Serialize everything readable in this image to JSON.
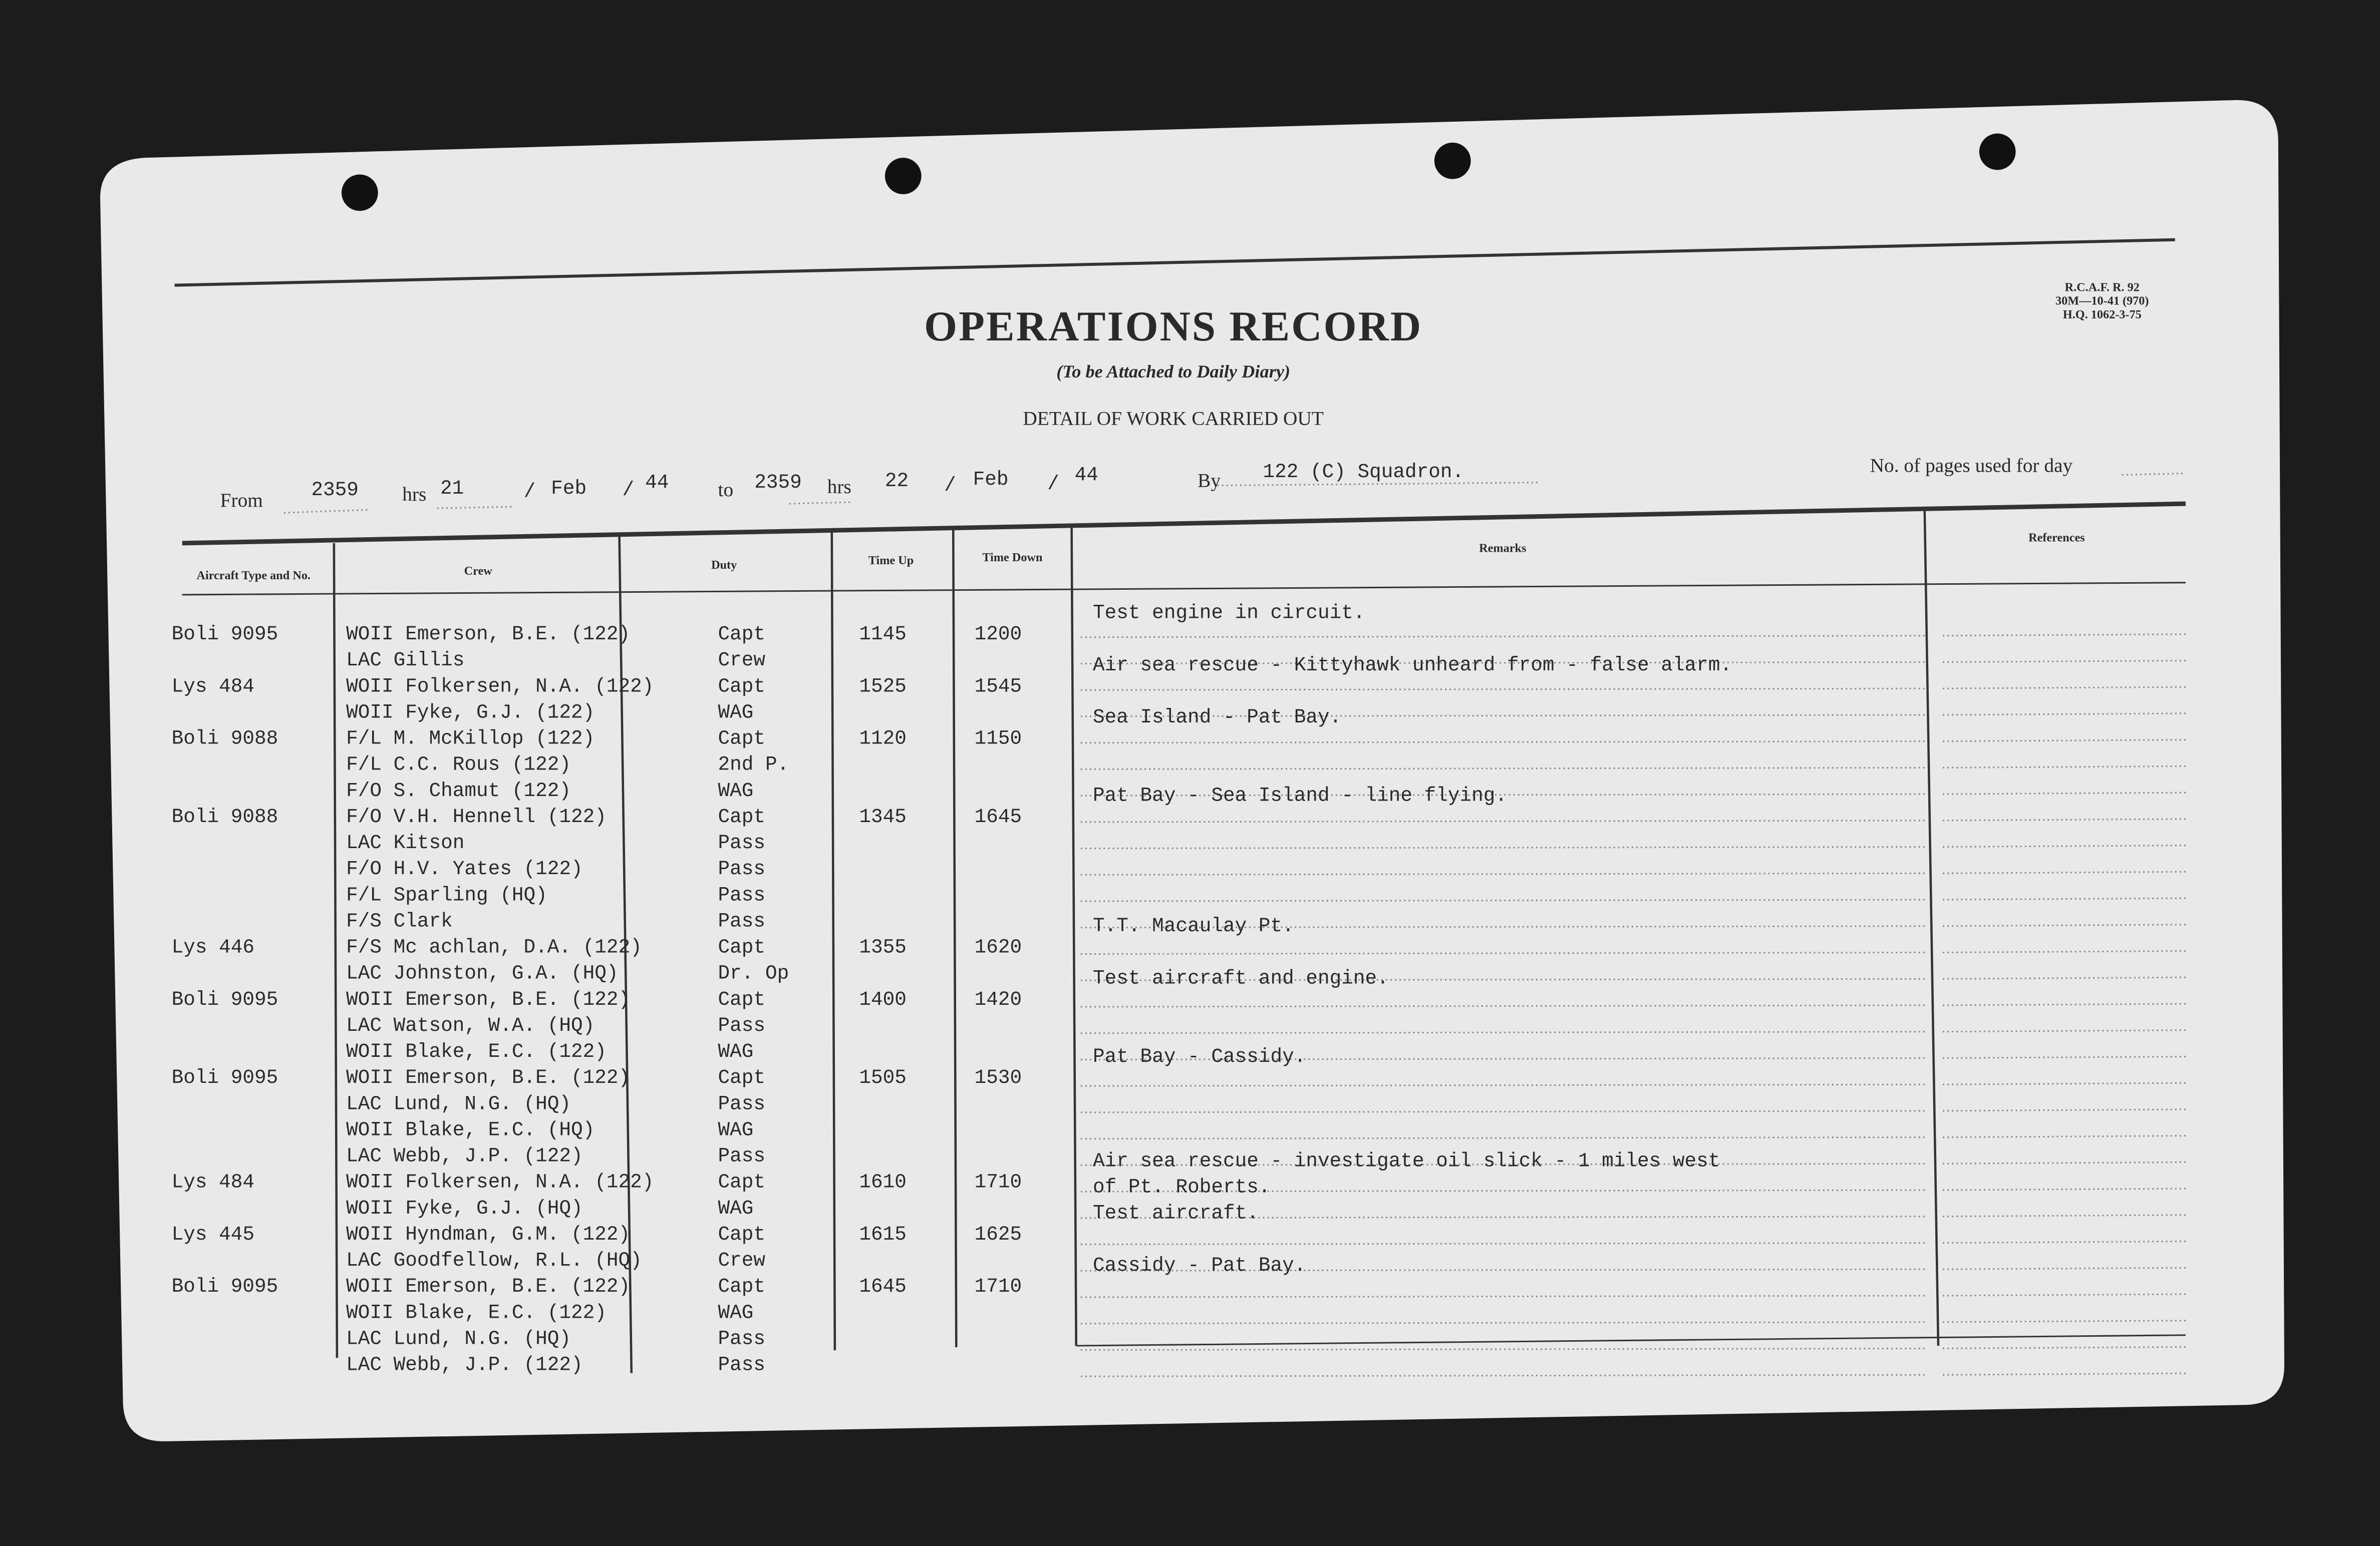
{
  "form_code": [
    "R.C.A.F. R. 92",
    "30M—10-41 (970)",
    "H.Q. 1062-3-75"
  ],
  "header": {
    "title": "OPERATIONS RECORD",
    "subtitle": "(To be Attached to Daily Diary)",
    "detail": "DETAIL OF WORK CARRIED OUT"
  },
  "period": {
    "from_label": "From",
    "from_time": "2359",
    "hrs_label": "hrs",
    "from_day": "21",
    "sep": "/",
    "from_month": "Feb",
    "from_year": "44",
    "to_label": "to",
    "to_time": "2359",
    "to_day": "22",
    "to_month": "Feb",
    "to_year": "44",
    "by_label": "By",
    "by": "122 (C) Squadron.",
    "pages_label": "No. of pages used for day"
  },
  "table": {
    "columns": [
      "Aircraft Type and No.",
      "Crew",
      "Duty",
      "Time Up",
      "Time Down",
      "Remarks",
      "References"
    ],
    "rows": [
      {
        "type": "Boli 9095",
        "crew": "WOII Emerson, B.E. (122)",
        "duty": "Capt",
        "up": "1145",
        "down": "1200",
        "remarks": "Test engine in circuit."
      },
      {
        "crew": "LAC Gillis",
        "duty": "Crew"
      },
      {
        "type": "Lys 484",
        "crew": "WOII Folkersen, N.A. (122)",
        "duty": "Capt",
        "up": "1525",
        "down": "1545",
        "remarks": "Air sea rescue - Kittyhawk unheard from - false alarm."
      },
      {
        "crew": "WOII Fyke, G.J. (122)",
        "duty": "WAG"
      },
      {
        "type": "Boli 9088",
        "crew": "F/L M. McKillop (122)",
        "duty": "Capt",
        "up": "1120",
        "down": "1150",
        "remarks": "Sea Island - Pat Bay."
      },
      {
        "crew": "F/L C.C. Rous (122)",
        "duty": "2nd P."
      },
      {
        "crew": "F/O S. Chamut (122)",
        "duty": "WAG"
      },
      {
        "type": "Boli 9088",
        "crew": "F/O V.H. Hennell (122)",
        "duty": "Capt",
        "up": "1345",
        "down": "1645",
        "remarks": "Pat Bay - Sea Island - line flying."
      },
      {
        "crew": "LAC Kitson",
        "duty": "Pass"
      },
      {
        "crew": "F/O H.V. Yates (122)",
        "duty": "Pass"
      },
      {
        "crew": "F/L Sparling (HQ)",
        "duty": "Pass"
      },
      {
        "crew": "F/S Clark",
        "duty": "Pass"
      },
      {
        "type": "Lys 446",
        "crew": "F/S Mc achlan, D.A. (122)",
        "duty": "Capt",
        "up": "1355",
        "down": "1620",
        "remarks": "T.T. Macaulay Pt."
      },
      {
        "crew": "LAC Johnston, G.A. (HQ)",
        "duty": "Dr. Op"
      },
      {
        "type": "Boli 9095",
        "crew": "WOII Emerson, B.E. (122)",
        "duty": "Capt",
        "up": "1400",
        "down": "1420",
        "remarks": "Test aircraft and engine."
      },
      {
        "crew": "LAC Watson, W.A. (HQ)",
        "duty": "Pass"
      },
      {
        "crew": "WOII Blake, E.C. (122)",
        "duty": "WAG"
      },
      {
        "type": "Boli 9095",
        "crew": "WOII Emerson, B.E. (122)",
        "duty": "Capt",
        "up": "1505",
        "down": "1530",
        "remarks": "Pat Bay - Cassidy."
      },
      {
        "crew": "LAC Lund, N.G. (HQ)",
        "duty": "Pass"
      },
      {
        "crew": "WOII Blake, E.C. (HQ)",
        "duty": "WAG"
      },
      {
        "crew": "LAC Webb, J.P. (122)",
        "duty": "Pass"
      },
      {
        "type": "Lys 484",
        "crew": "WOII Folkersen, N.A. (122)",
        "duty": "Capt",
        "up": "1610",
        "down": "1710",
        "remarks": "Air sea rescue - investigate oil slick - 1 miles west"
      },
      {
        "crew": "WOII Fyke, G.J. (HQ)",
        "duty": "WAG",
        "remarks": "of Pt. Roberts."
      },
      {
        "type": "Lys 445",
        "crew": "WOII Hyndman, G.M. (122)",
        "duty": "Capt",
        "up": "1615",
        "down": "1625",
        "remarks": "Test aircraft."
      },
      {
        "crew": "LAC Goodfellow, R.L. (HQ)",
        "duty": "Crew"
      },
      {
        "type": "Boli 9095",
        "crew": "WOII Emerson, B.E. (122)",
        "duty": "Capt",
        "up": "1645",
        "down": "1710",
        "remarks": "Cassidy - Pat Bay."
      },
      {
        "crew": "WOII Blake, E.C. (122)",
        "duty": "WAG"
      },
      {
        "crew": "LAC Lund, N.G. (HQ)",
        "duty": "Pass"
      },
      {
        "crew": "LAC Webb, J.P. (122)",
        "duty": "Pass"
      }
    ]
  }
}
